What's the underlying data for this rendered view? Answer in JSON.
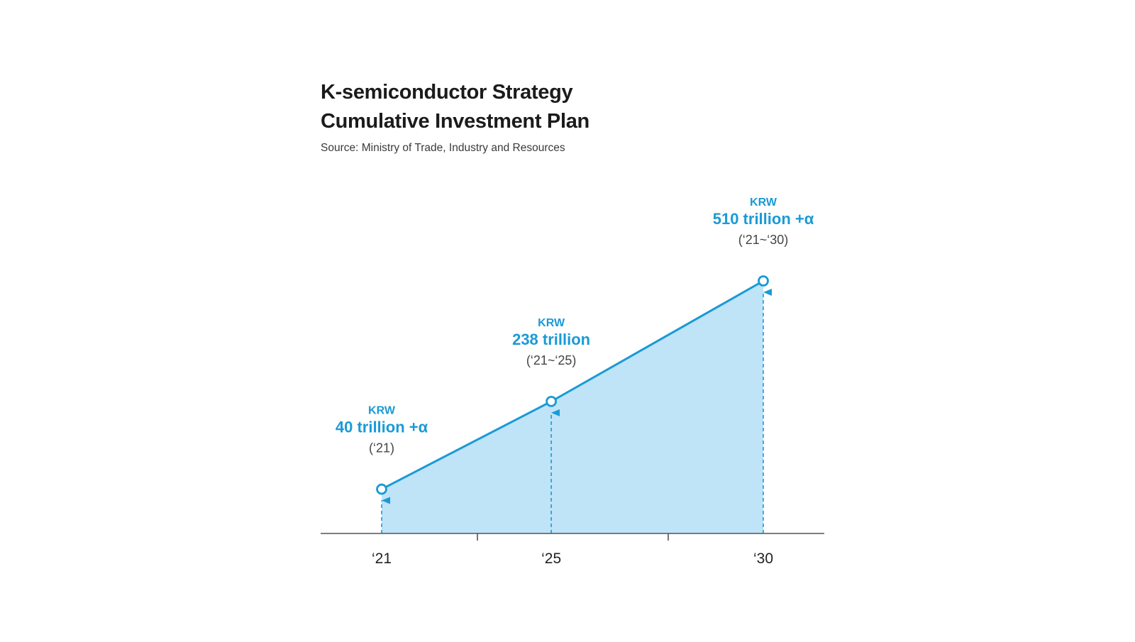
{
  "header": {
    "title_line1": "K-semiconductor Strategy",
    "title_line2": "Cumulative Investment Plan",
    "source": "Source: Ministry of Trade, Industry and Resources"
  },
  "colors": {
    "accent": "#1a9ad6",
    "area_fill": "#bfe3f7",
    "axis": "#555555",
    "text_dark": "#1b1b1b"
  },
  "chart_data": {
    "type": "area",
    "title": "K-semiconductor Strategy Cumulative Investment Plan",
    "subtitle": "Source: Ministry of Trade, Industry and Resources",
    "x": [
      2021,
      2025,
      2030
    ],
    "categories": [
      "‘21",
      "‘25",
      "‘30"
    ],
    "values": [
      40,
      238,
      510
    ],
    "unit": "trillion KRW",
    "ylim": [
      -60,
      580
    ],
    "grid": false,
    "legend": "none",
    "annotations": [
      {
        "currency": "KRW",
        "value": "40 trillion +α",
        "period": "(‘21)"
      },
      {
        "currency": "KRW",
        "value": "238 trillion",
        "period": "(‘21~‘25)"
      },
      {
        "currency": "KRW",
        "value": "510 trillion +α",
        "period": "(‘21~‘30)"
      }
    ]
  }
}
